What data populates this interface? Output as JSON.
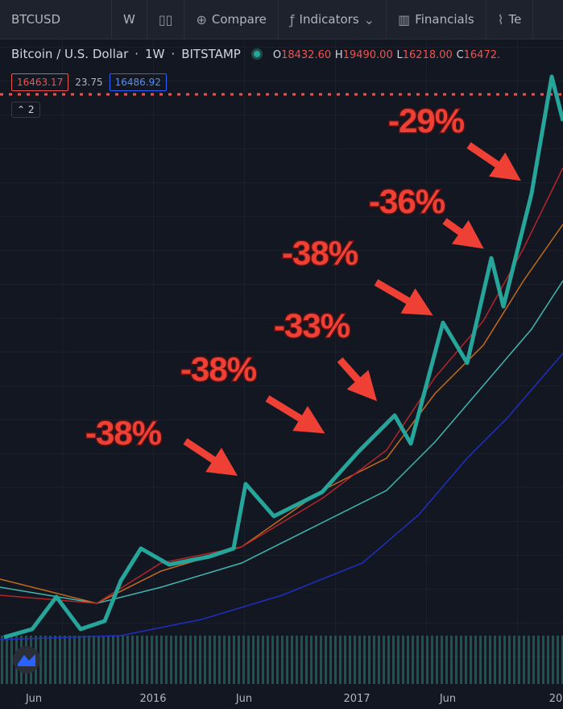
{
  "toolbar": {
    "symbol": "BTCUSD",
    "interval": "W",
    "compare": "Compare",
    "indicators": "Indicators",
    "financials": "Financials",
    "more": "Te"
  },
  "legend": {
    "name": "Bitcoin / U.S. Dollar",
    "interval": "1W",
    "exchange": "BITSTAMP",
    "ohlc": [
      {
        "key": "O",
        "value": "18432.60"
      },
      {
        "key": "H",
        "value": "19490.00"
      },
      {
        "key": "L",
        "value": "16218.00"
      },
      {
        "key": "C",
        "value": "16472."
      }
    ]
  },
  "prices": {
    "bid": "16463.17",
    "spread": "23.75",
    "ask": "16486.92"
  },
  "collapse": "2",
  "annotations": [
    "-29%",
    "-36%",
    "-38%",
    "-33%",
    "-38%",
    "-38%"
  ],
  "x_axis": [
    "Jun",
    "2016",
    "Jun",
    "2017",
    "Jun",
    "20"
  ]
}
